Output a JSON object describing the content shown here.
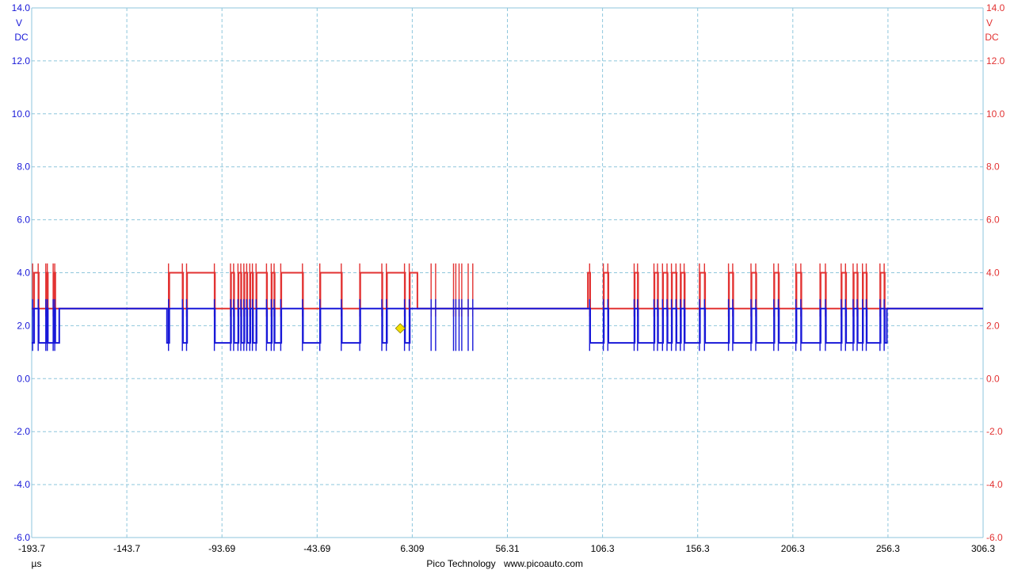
{
  "chart_data": {
    "type": "line",
    "title": "",
    "xlabel": "",
    "ylabel": "",
    "x_unit": "µs",
    "xlim": [
      -193.7,
      306.3
    ],
    "ylim": [
      -6.0,
      14.0
    ],
    "x_ticks": [
      "-193.7",
      "-143.7",
      "-93.69",
      "-43.69",
      "6.309",
      "56.31",
      "106.3",
      "156.3",
      "206.3",
      "256.3",
      "306.3"
    ],
    "y_ticks": [
      "-6.0",
      "-4.0",
      "-2.0",
      "0.0",
      "2.0",
      "4.0",
      "6.0",
      "8.0",
      "10.0",
      "12.0",
      "14.0"
    ],
    "left_axis": {
      "unit_line1": "V",
      "unit_line2": "DC",
      "color": "#1818d8"
    },
    "right_axis": {
      "unit_line1": "V",
      "unit_line2": "DC",
      "color": "#e23232"
    },
    "grid": true,
    "grid_color": "#8ec6dc",
    "series": [
      {
        "color": "#e23232",
        "levels": {
          "idle": 2.65,
          "low": 2.65,
          "high": 4.0
        },
        "active_intervals": [
          [
            -193.7,
            -179.2
          ],
          [
            -122.6,
            9.0
          ],
          [
            98.6,
            255.7
          ]
        ],
        "toggle_times": [
          -192.4,
          -190.0,
          -186.0,
          -185.2,
          -182.1,
          -181.3,
          -121.4,
          -114.2,
          -112.0,
          -97.4,
          -88.9,
          -87.3,
          -85.0,
          -83.5,
          -81.9,
          -80.4,
          -78.8,
          -77.4,
          -75.5,
          -70.0,
          -67.5,
          -66.0,
          -62.5,
          -51.1,
          -42.0,
          -30.7,
          -21.0,
          -9.4,
          -7.0,
          2.5,
          5.0,
          16.5,
          18.9,
          28.3,
          29.5,
          31.2,
          32.6,
          36.0,
          38.4,
          99.8,
          107.0,
          109.4,
          123.2,
          125.0,
          133.6,
          135.5,
          138.1,
          140.5,
          142.8,
          145.2,
          147.5,
          149.5,
          157.5,
          160.2,
          172.8,
          175.0,
          184.6,
          187.1,
          196.6,
          199.0,
          208.2,
          210.8,
          220.9,
          223.7,
          232.0,
          234.3,
          238.3,
          240.4,
          243.2,
          245.2,
          252.4,
          254.6
        ],
        "spike_times": [
          -193.2,
          -190.3,
          -186.3,
          -185.5,
          -182.4,
          -181.6,
          -121.8,
          -114.5,
          -112.3,
          -97.7,
          -89.2,
          -87.6,
          -85.3,
          -83.8,
          -82.2,
          -80.7,
          -79.1,
          -77.7,
          -75.8,
          -70.3,
          -67.8,
          -66.3,
          -62.8,
          -51.4,
          -42.3,
          -31.0,
          -21.3,
          -9.7,
          -7.3,
          2.2,
          4.7,
          16.2,
          18.6,
          28.0,
          29.2,
          30.9,
          32.3,
          35.7,
          38.1,
          99.5,
          106.7,
          109.1,
          122.9,
          124.7,
          133.3,
          135.2,
          137.8,
          140.2,
          142.5,
          144.9,
          147.2,
          149.2,
          157.2,
          159.9,
          172.5,
          174.7,
          184.3,
          186.8,
          196.3,
          198.7,
          207.9,
          210.5,
          220.6,
          223.4,
          231.7,
          234.0,
          238.0,
          240.1,
          242.9,
          244.9,
          252.1,
          254.3
        ]
      },
      {
        "color": "#1818d8",
        "levels": {
          "idle": 2.65,
          "low": 1.35,
          "high": 2.65
        },
        "active_intervals": [
          [
            -193.7,
            -179.2
          ],
          [
            -122.6,
            9.0
          ],
          [
            98.6,
            255.7
          ]
        ],
        "toggle_times": [
          -192.4,
          -190.0,
          -186.0,
          -185.2,
          -182.1,
          -181.3,
          -121.4,
          -114.2,
          -112.0,
          -97.4,
          -88.9,
          -87.3,
          -85.0,
          -83.5,
          -81.9,
          -80.4,
          -78.8,
          -77.4,
          -75.5,
          -70.0,
          -67.5,
          -66.0,
          -62.5,
          -51.1,
          -42.0,
          -30.7,
          -21.0,
          -9.4,
          -7.0,
          2.5,
          5.0,
          16.5,
          18.9,
          28.3,
          29.5,
          31.2,
          32.6,
          36.0,
          38.4,
          99.8,
          107.0,
          109.4,
          123.2,
          125.0,
          133.6,
          135.5,
          138.1,
          140.5,
          142.8,
          145.2,
          147.5,
          149.5,
          157.5,
          160.2,
          172.8,
          175.0,
          184.6,
          187.1,
          196.6,
          199.0,
          208.2,
          210.8,
          220.9,
          223.7,
          232.0,
          234.3,
          238.3,
          240.4,
          243.2,
          245.2,
          252.4,
          254.6
        ],
        "spike_times": [
          -193.2,
          -190.3,
          -186.3,
          -185.5,
          -182.4,
          -181.6,
          -121.8,
          -114.5,
          -112.3,
          -97.7,
          -89.2,
          -87.6,
          -85.3,
          -83.8,
          -82.2,
          -80.7,
          -79.1,
          -77.7,
          -75.8,
          -70.3,
          -67.8,
          -66.3,
          -62.8,
          -51.4,
          -42.3,
          -31.0,
          -21.3,
          -9.7,
          -7.3,
          2.2,
          4.7,
          16.2,
          18.6,
          28.0,
          29.2,
          30.9,
          32.3,
          35.7,
          38.1,
          99.5,
          106.7,
          109.1,
          122.9,
          124.7,
          133.3,
          135.2,
          137.8,
          140.2,
          142.5,
          144.9,
          147.2,
          149.2,
          157.2,
          159.9,
          172.5,
          174.7,
          184.3,
          186.8,
          196.3,
          198.7,
          207.9,
          210.5,
          220.6,
          223.4,
          231.7,
          234.0,
          238.0,
          240.1,
          242.9,
          244.9,
          252.1,
          254.3
        ]
      }
    ],
    "trigger_marker": {
      "x": 0.0,
      "y": 1.9,
      "color": "#f2e000"
    }
  },
  "footer": {
    "brand": "Pico Technology",
    "website": "www.picoauto.com"
  }
}
